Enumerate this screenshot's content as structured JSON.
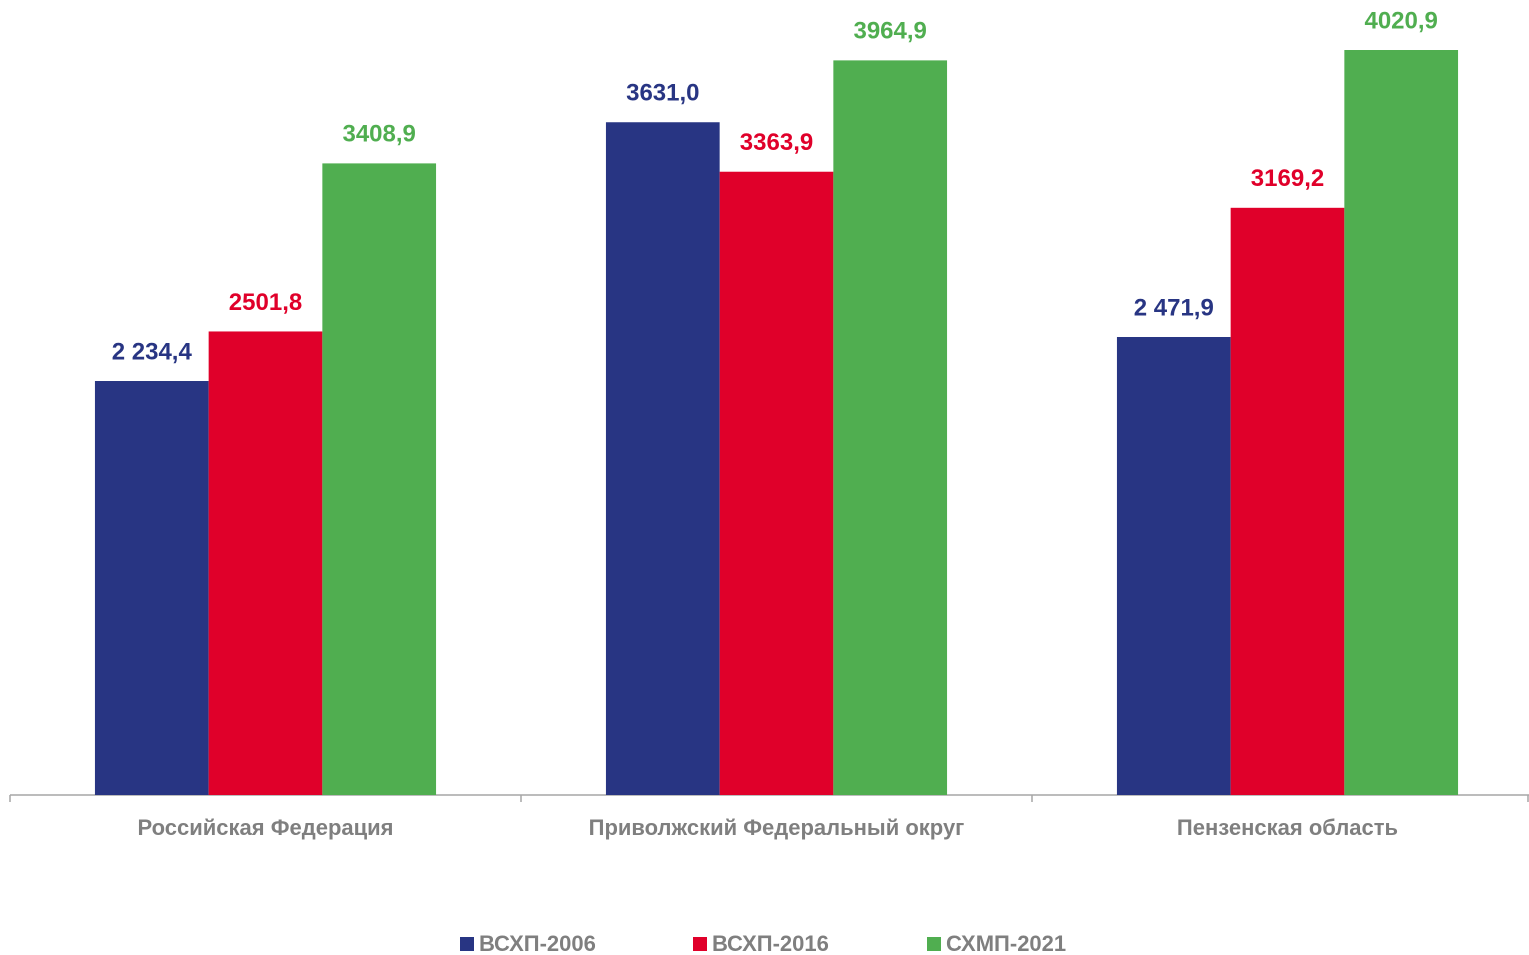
{
  "chart_data": {
    "type": "bar",
    "categories": [
      "Российская Федерация",
      "Приволжский Федеральный округ",
      "Пензенская область"
    ],
    "series": [
      {
        "name": "ВСХП-2006",
        "color": "#283583",
        "values": [
          2234.4,
          3631.0,
          2471.9
        ],
        "value_labels": [
          "2 234,4",
          "3631,0",
          "2 471,9"
        ]
      },
      {
        "name": "ВСХП-2016",
        "color": "#e0002a",
        "values": [
          2501.8,
          3363.9,
          3169.2
        ],
        "value_labels": [
          "2501,8",
          "3363,9",
          "3169,2"
        ]
      },
      {
        "name": "СХМП-2021",
        "color": "#50ae50",
        "values": [
          3408.9,
          3964.9,
          4020.9
        ],
        "value_labels": [
          "3408,9",
          "3964,9",
          "4020,9"
        ]
      }
    ],
    "legend": "bottom"
  }
}
